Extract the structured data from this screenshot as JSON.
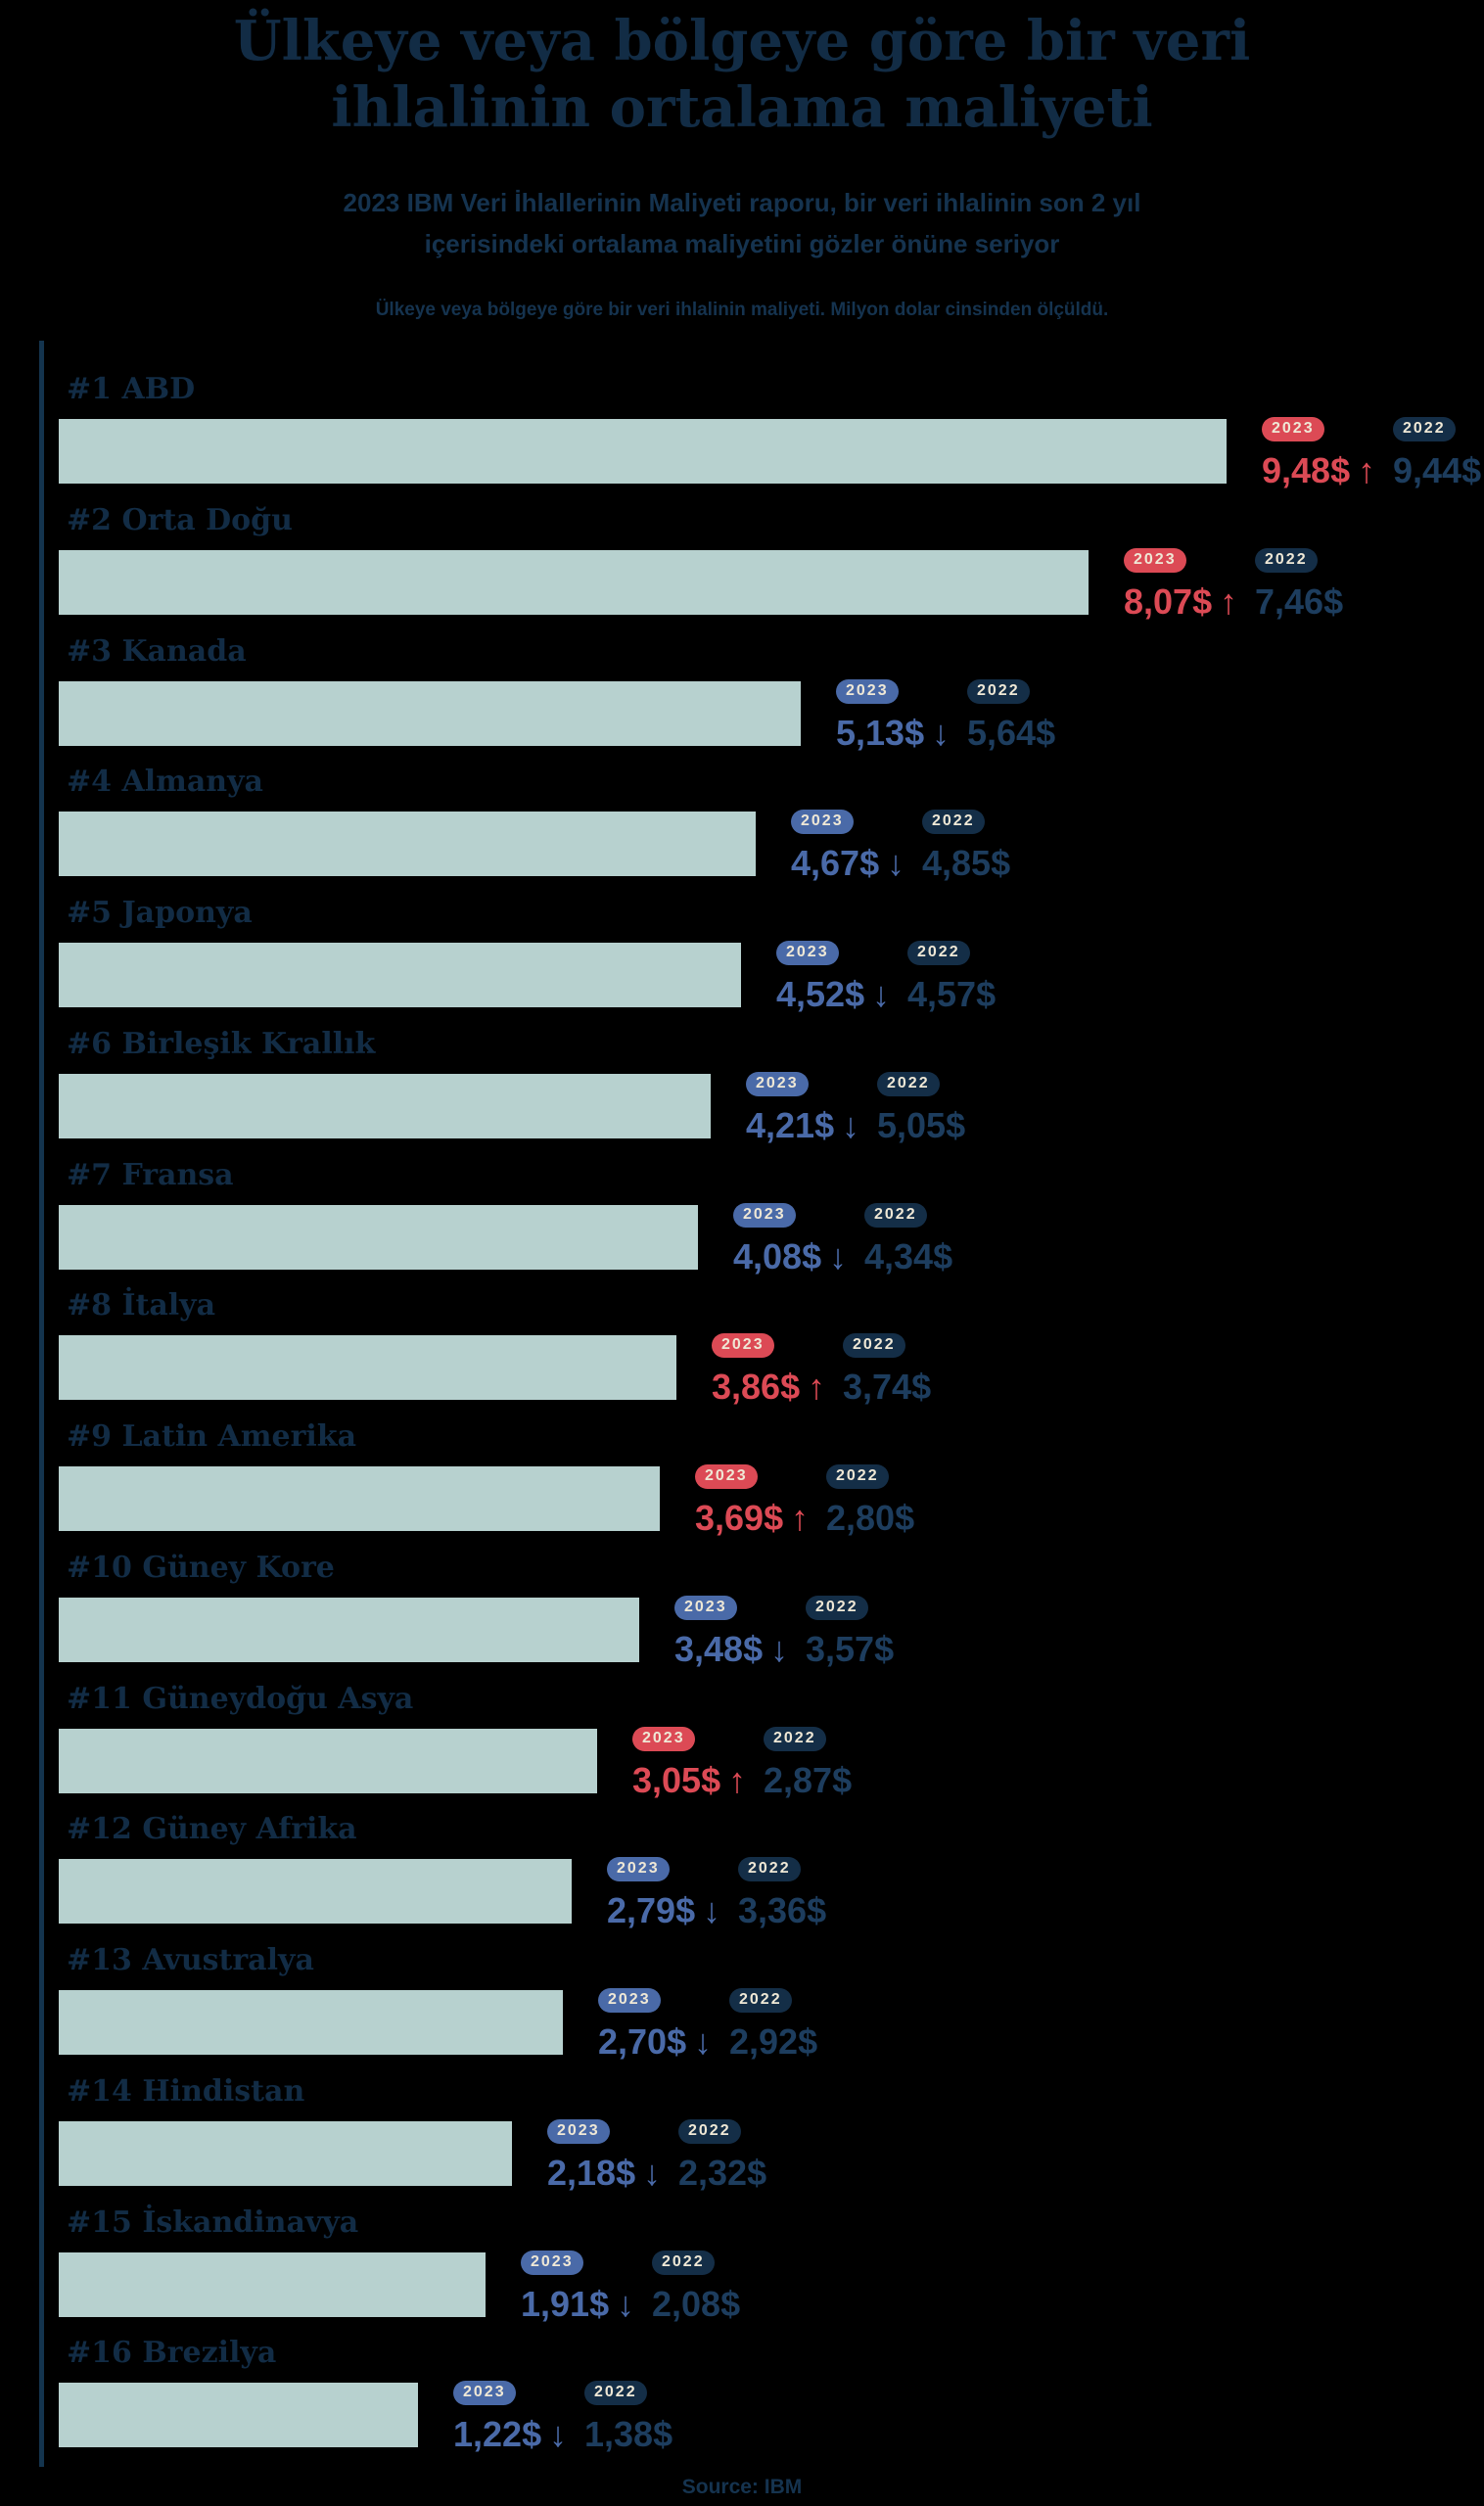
{
  "header": {
    "title_lines": [
      "Ülkeye veya bölgeye göre bir veri",
      "ihlalinin ortalama maliyeti"
    ],
    "subtitle": "2023 IBM Veri İhlallerinin Maliyeti raporu, bir veri ihlalinin son 2 yıl içerisindeki ortalama maliyetini gözler önüne seriyor",
    "caption": "Ülkeye veya bölgeye göre bir veri ihlalinin maliyeti. Milyon dolar cinsinden ölçüldü."
  },
  "footer": {
    "source": "Source: IBM"
  },
  "colors": {
    "background": "#000000",
    "title_navy": "#122c45",
    "text_navy": "#15334f",
    "value_2022_navy": "#1d3d5e",
    "pill_2022_navy": "#142e47",
    "increase_red": "#dc4a55",
    "decrease_blue": "#4a6aa8",
    "bar_fill": "#b7d1cf",
    "pill_text_cream": "#efe8d6",
    "axis_line": "#14344e"
  },
  "chart_data": {
    "type": "bar",
    "orientation": "horizontal",
    "title": "Ülkeye veya bölgeye göre bir veri ihlalinin ortalama maliyeti",
    "unit": "milyon dolar",
    "series_labels": [
      "2023",
      "2022"
    ],
    "legend_position": "per-bar, right of each bar",
    "grid": false,
    "xlim": [
      0,
      9.48
    ],
    "rows": [
      {
        "rank": "#1",
        "label": "#1 ABD",
        "value_2023": 9.48,
        "label_2023": "9,48$",
        "value_2022": 9.44,
        "label_2022": "9,44$",
        "direction": "up"
      },
      {
        "rank": "#2",
        "label": "#2 Orta Doğu",
        "value_2023": 8.07,
        "label_2023": "8,07$",
        "value_2022": 7.46,
        "label_2022": "7,46$",
        "direction": "up"
      },
      {
        "rank": "#3",
        "label": "#3 Kanada",
        "value_2023": 5.13,
        "label_2023": "5,13$",
        "value_2022": 5.64,
        "label_2022": "5,64$",
        "direction": "down"
      },
      {
        "rank": "#4",
        "label": "#4 Almanya",
        "value_2023": 4.67,
        "label_2023": "4,67$",
        "value_2022": 4.85,
        "label_2022": "4,85$",
        "direction": "down"
      },
      {
        "rank": "#5",
        "label": "#5 Japonya",
        "value_2023": 4.52,
        "label_2023": "4,52$",
        "value_2022": 4.57,
        "label_2022": "4,57$",
        "direction": "down"
      },
      {
        "rank": "#6",
        "label": "#6 Birleşik Krallık",
        "value_2023": 4.21,
        "label_2023": "4,21$",
        "value_2022": 5.05,
        "label_2022": "5,05$",
        "direction": "down"
      },
      {
        "rank": "#7",
        "label": "#7 Fransa",
        "value_2023": 4.08,
        "label_2023": "4,08$",
        "value_2022": 4.34,
        "label_2022": "4,34$",
        "direction": "down"
      },
      {
        "rank": "#8",
        "label": "#8 İtalya",
        "value_2023": 3.86,
        "label_2023": "3,86$",
        "value_2022": 3.74,
        "label_2022": "3,74$",
        "direction": "up"
      },
      {
        "rank": "#9",
        "label": "#9 Latin Amerika",
        "value_2023": 3.69,
        "label_2023": "3,69$",
        "value_2022": 2.8,
        "label_2022": "2,80$",
        "direction": "up"
      },
      {
        "rank": "#10",
        "label": "#10 Güney Kore",
        "value_2023": 3.48,
        "label_2023": "3,48$",
        "value_2022": 3.57,
        "label_2022": "3,57$",
        "direction": "down"
      },
      {
        "rank": "#11",
        "label": "#11 Güneydoğu Asya",
        "value_2023": 3.05,
        "label_2023": "3,05$",
        "value_2022": 2.87,
        "label_2022": "2,87$",
        "direction": "up"
      },
      {
        "rank": "#12",
        "label": "#12 Güney Afrika",
        "value_2023": 2.79,
        "label_2023": "2,79$",
        "value_2022": 3.36,
        "label_2022": "3,36$",
        "direction": "down"
      },
      {
        "rank": "#13",
        "label": "#13 Avustralya",
        "value_2023": 2.7,
        "label_2023": "2,70$",
        "value_2022": 2.92,
        "label_2022": "2,92$",
        "direction": "down"
      },
      {
        "rank": "#14",
        "label": "#14 Hindistan",
        "value_2023": 2.18,
        "label_2023": "2,18$",
        "value_2022": 2.32,
        "label_2022": "2,32$",
        "direction": "down"
      },
      {
        "rank": "#15",
        "label": "#15 İskandinavya",
        "value_2023": 1.91,
        "label_2023": "1,91$",
        "value_2022": 2.08,
        "label_2022": "2,08$",
        "direction": "down"
      },
      {
        "rank": "#16",
        "label": "#16 Brezilya",
        "value_2023": 1.22,
        "label_2023": "1,22$",
        "value_2022": 1.38,
        "label_2022": "1,38$",
        "direction": "down"
      }
    ]
  }
}
